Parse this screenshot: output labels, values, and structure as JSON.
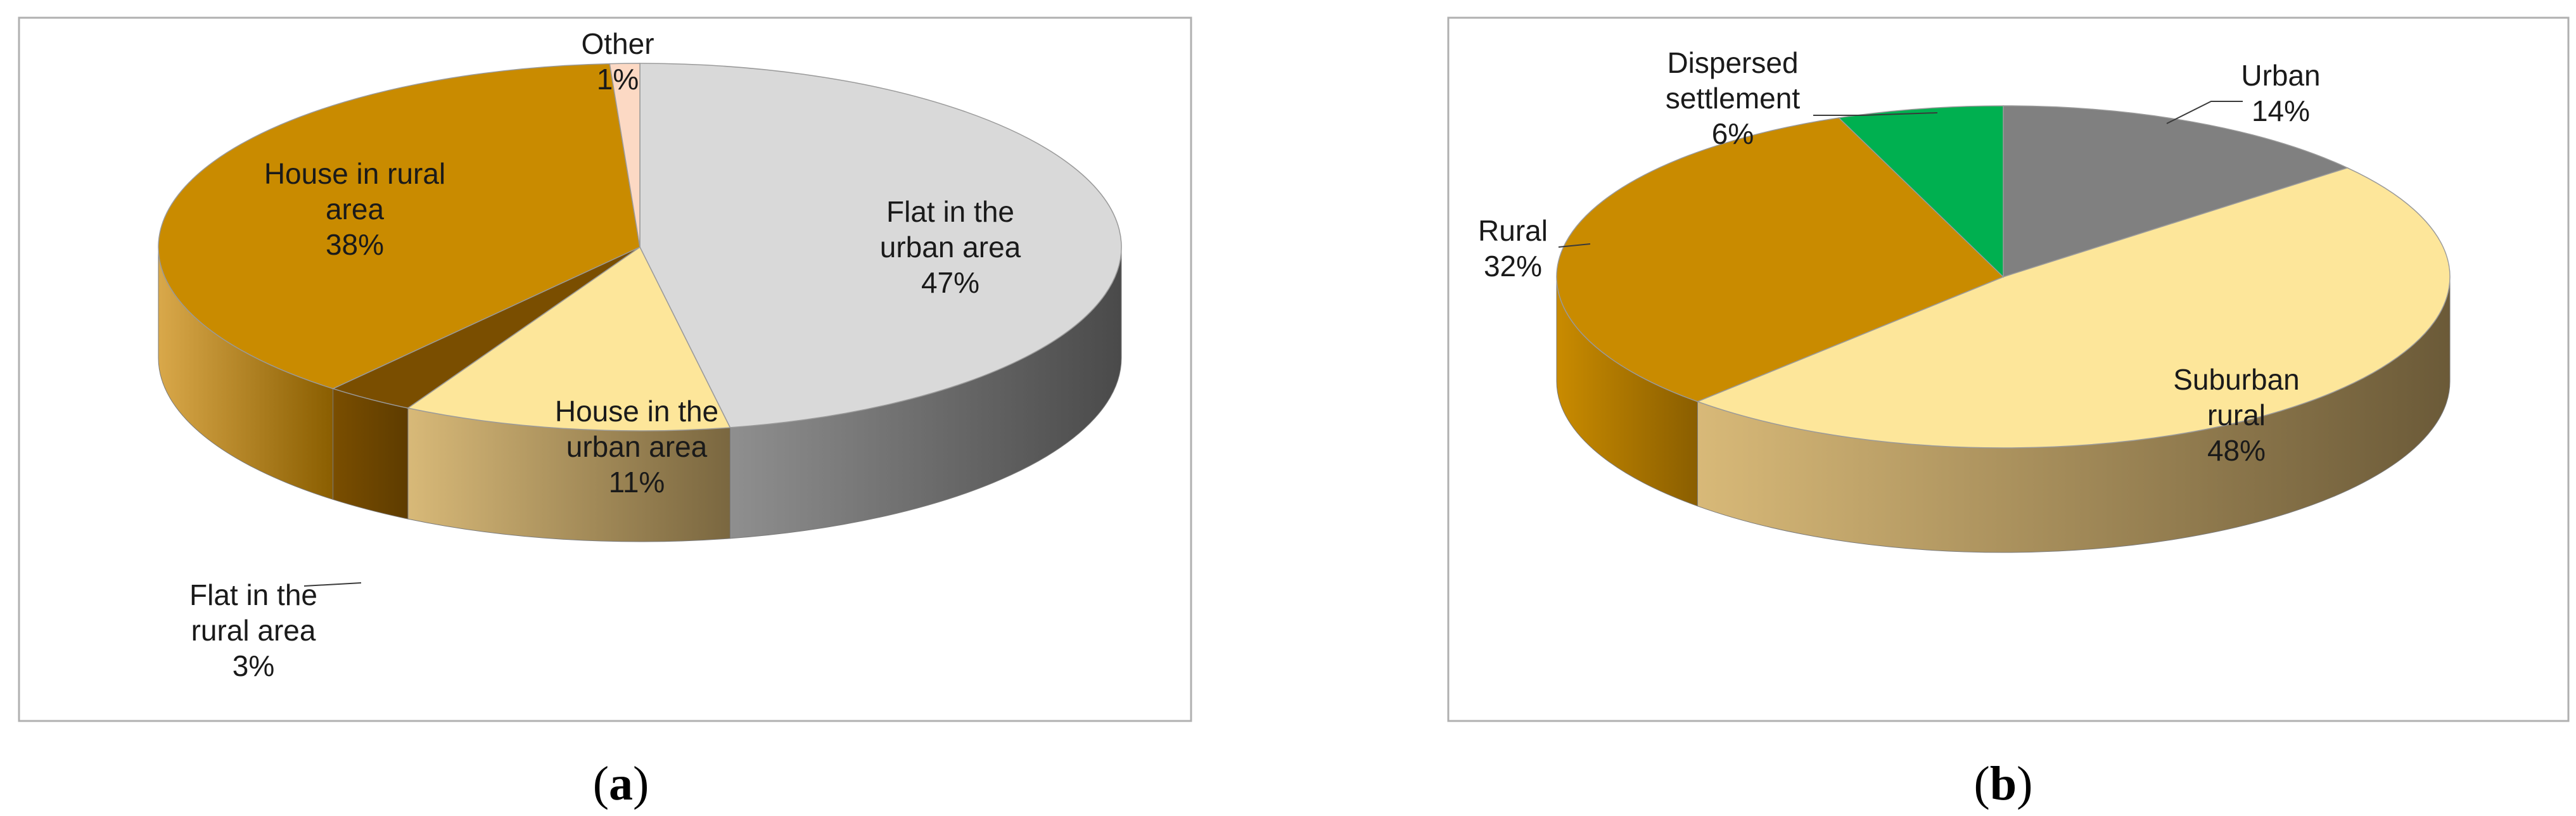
{
  "chart_data": [
    {
      "type": "pie",
      "id": "a",
      "caption": "a",
      "slices": [
        {
          "label": [
            "Flat in the",
            "urban area",
            "47%"
          ],
          "name": "Flat in the urban area",
          "value": 47,
          "color": "#d9d9d9",
          "side_dark": "#4a4a4a",
          "side_light": "#8f8f8f"
        },
        {
          "label": [
            "House in the",
            "urban area",
            "11%"
          ],
          "name": "House in the urban area",
          "value": 11,
          "color": "#fde69a",
          "side_dark": "#7a6740",
          "side_light": "#d8b978"
        },
        {
          "label": [
            "Flat in the",
            "rural area",
            "3%"
          ],
          "name": "Flat in the rural area",
          "value": 3,
          "color": "#7a4e00",
          "side_dark": "#5e3c00",
          "side_light": "#7a4e00"
        },
        {
          "label": [
            "House in rural",
            "area",
            "38%"
          ],
          "name": "House in rural area",
          "value": 38,
          "color": "#c98b00",
          "side_dark": "#8a5e00",
          "side_light": "#d9a84a"
        },
        {
          "label": [
            "Other",
            "1%"
          ],
          "name": "Other",
          "value": 1,
          "color": "#fcd9c4",
          "side_dark": "#c9a793",
          "side_light": "#fcd9c4"
        }
      ]
    },
    {
      "type": "pie",
      "id": "b",
      "caption": "b",
      "slices": [
        {
          "label": [
            "Urban",
            "14%"
          ],
          "name": "Urban",
          "value": 14,
          "color": "#808080",
          "side_dark": "#4a4a4a",
          "side_light": "#8f8f8f"
        },
        {
          "label": [
            "Suburban",
            "rural",
            "48%"
          ],
          "name": "Suburban rural",
          "value": 48,
          "color": "#fde69a",
          "side_dark": "#6b5a38",
          "side_light": "#d8b978"
        },
        {
          "label": [
            "Rural",
            "32%"
          ],
          "name": "Rural",
          "value": 32,
          "color": "#c98b00",
          "side_dark": "#8a5e00",
          "side_light": "#c98b00"
        },
        {
          "label": [
            "Dispersed",
            "settlement",
            "6%"
          ],
          "name": "Dispersed settlement",
          "value": 6,
          "color": "#00b050",
          "side_dark": "#007a38",
          "side_light": "#00b050"
        }
      ]
    }
  ]
}
